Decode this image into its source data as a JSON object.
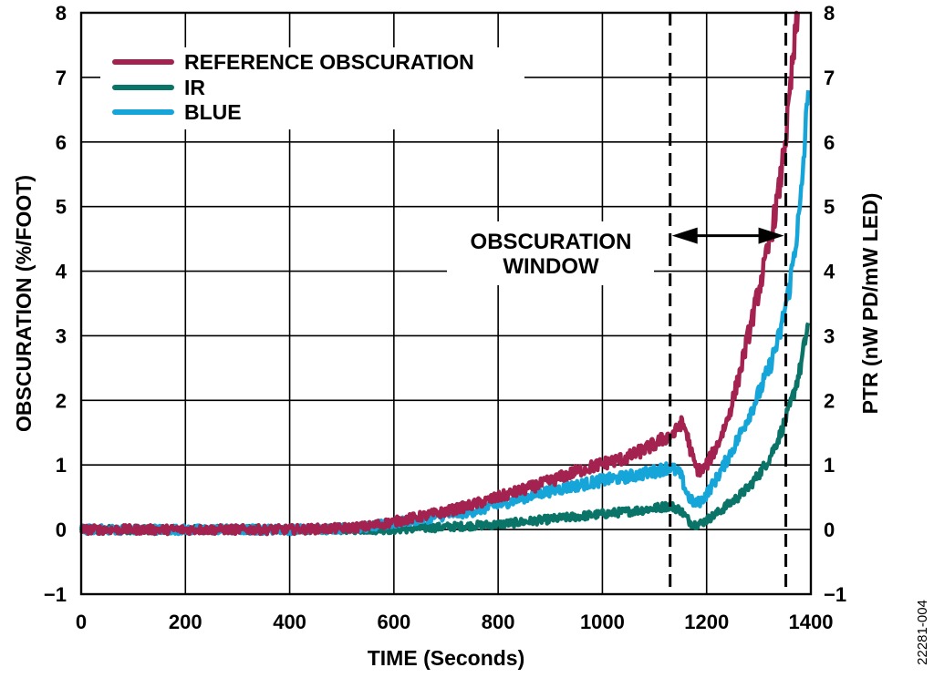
{
  "chart_data": {
    "type": "line",
    "title": "",
    "xlabel": "TIME (Seconds)",
    "ylabel": "OBSCURATION (%/FOOT)",
    "y2label": "PTR (nW PD/mW LED)",
    "xlim": [
      0,
      1400
    ],
    "ylim": [
      -1,
      8
    ],
    "y2lim": [
      -1,
      8
    ],
    "x_ticks": [
      "0",
      "200",
      "400",
      "600",
      "800",
      "1000",
      "1200",
      "1400"
    ],
    "y_ticks": [
      "−1",
      "0",
      "1",
      "2",
      "3",
      "4",
      "5",
      "6",
      "7",
      "8"
    ],
    "y2_ticks": [
      "−1",
      "0",
      "1",
      "2",
      "3",
      "4",
      "5",
      "6",
      "7",
      "8"
    ],
    "grid": true,
    "legend_position": "top-left",
    "series": [
      {
        "name": "REFERENCE OBSCURATION",
        "color": "#a3224f",
        "axis": "left",
        "x": [
          0,
          100,
          200,
          300,
          400,
          500,
          550,
          600,
          650,
          700,
          750,
          800,
          850,
          900,
          950,
          1000,
          1050,
          1100,
          1120,
          1140,
          1150,
          1160,
          1170,
          1180,
          1190,
          1200,
          1220,
          1240,
          1260,
          1280,
          1300,
          1320,
          1340,
          1355,
          1365,
          1375
        ],
        "y": [
          0.0,
          0.0,
          0.0,
          0.0,
          0.0,
          0.02,
          0.05,
          0.12,
          0.2,
          0.28,
          0.38,
          0.5,
          0.62,
          0.75,
          0.9,
          1.02,
          1.12,
          1.32,
          1.42,
          1.5,
          1.65,
          1.55,
          1.2,
          0.95,
          0.9,
          1.0,
          1.3,
          1.7,
          2.3,
          3.0,
          3.7,
          4.4,
          5.3,
          6.3,
          7.2,
          8.0
        ]
      },
      {
        "name": "IR",
        "color": "#0a7468",
        "axis": "right",
        "x": [
          0,
          100,
          200,
          300,
          400,
          500,
          550,
          600,
          650,
          700,
          750,
          800,
          850,
          900,
          950,
          1000,
          1050,
          1100,
          1130,
          1150,
          1170,
          1180,
          1190,
          1200,
          1220,
          1240,
          1260,
          1280,
          1300,
          1320,
          1340,
          1360,
          1380,
          1395
        ],
        "y": [
          0.0,
          0.0,
          0.0,
          0.0,
          0.0,
          0.0,
          0.0,
          0.0,
          0.02,
          0.04,
          0.06,
          0.08,
          0.12,
          0.16,
          0.2,
          0.24,
          0.28,
          0.33,
          0.37,
          0.3,
          0.1,
          0.08,
          0.1,
          0.15,
          0.25,
          0.38,
          0.5,
          0.65,
          0.85,
          1.1,
          1.45,
          1.9,
          2.5,
          3.2
        ]
      },
      {
        "name": "BLUE",
        "color": "#15a5d8",
        "axis": "right",
        "x": [
          0,
          100,
          200,
          300,
          400,
          500,
          550,
          600,
          650,
          700,
          750,
          800,
          850,
          900,
          950,
          1000,
          1050,
          1100,
          1130,
          1150,
          1160,
          1170,
          1180,
          1190,
          1200,
          1220,
          1240,
          1260,
          1280,
          1300,
          1320,
          1340,
          1360,
          1380,
          1395
        ],
        "y": [
          0.0,
          0.0,
          0.0,
          0.0,
          0.0,
          0.02,
          0.04,
          0.1,
          0.16,
          0.22,
          0.28,
          0.38,
          0.5,
          0.6,
          0.68,
          0.76,
          0.82,
          0.9,
          0.97,
          0.85,
          0.6,
          0.45,
          0.4,
          0.45,
          0.55,
          0.8,
          1.1,
          1.4,
          1.75,
          2.1,
          2.5,
          3.0,
          3.8,
          5.0,
          6.8
        ]
      }
    ],
    "annotations": [
      {
        "text_line1": "OBSCURATION",
        "text_line2": "WINDOW",
        "x_start": 1130,
        "x_end": 1352,
        "arrow_y": 4.55
      }
    ],
    "figure_id": "22281-004"
  }
}
